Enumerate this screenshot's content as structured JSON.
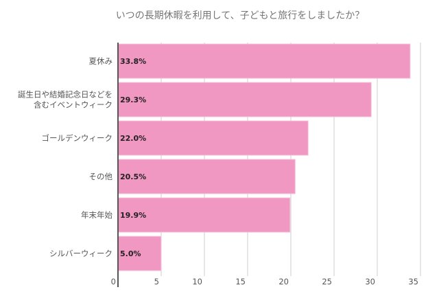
{
  "chart_data": {
    "type": "bar",
    "orientation": "horizontal",
    "title": "いつの長期休暇を利用して、子どもと旅行をしましたか？",
    "categories": [
      [
        "夏休み"
      ],
      [
        "誕生日や結婚記念日などを",
        "含むイベントウィーク"
      ],
      [
        "ゴールデンウィーク"
      ],
      [
        "その他"
      ],
      [
        "年末年始"
      ],
      [
        "シルバーウィーク"
      ]
    ],
    "values": [
      33.8,
      29.3,
      22.0,
      20.5,
      19.9,
      5.0
    ],
    "data_labels": [
      "33.8%",
      "29.3%",
      "22.0%",
      "20.5%",
      "19.9%",
      "5.0%"
    ],
    "xlim": [
      0,
      35
    ],
    "xticks": [
      "0",
      "5",
      "10",
      "15",
      "20",
      "25",
      "30",
      "35"
    ],
    "xtick_values": [
      0,
      5,
      10,
      15,
      20,
      25,
      30,
      35
    ],
    "grid": true,
    "bar_color": "#f097c2",
    "xlabel": "",
    "ylabel": ""
  }
}
